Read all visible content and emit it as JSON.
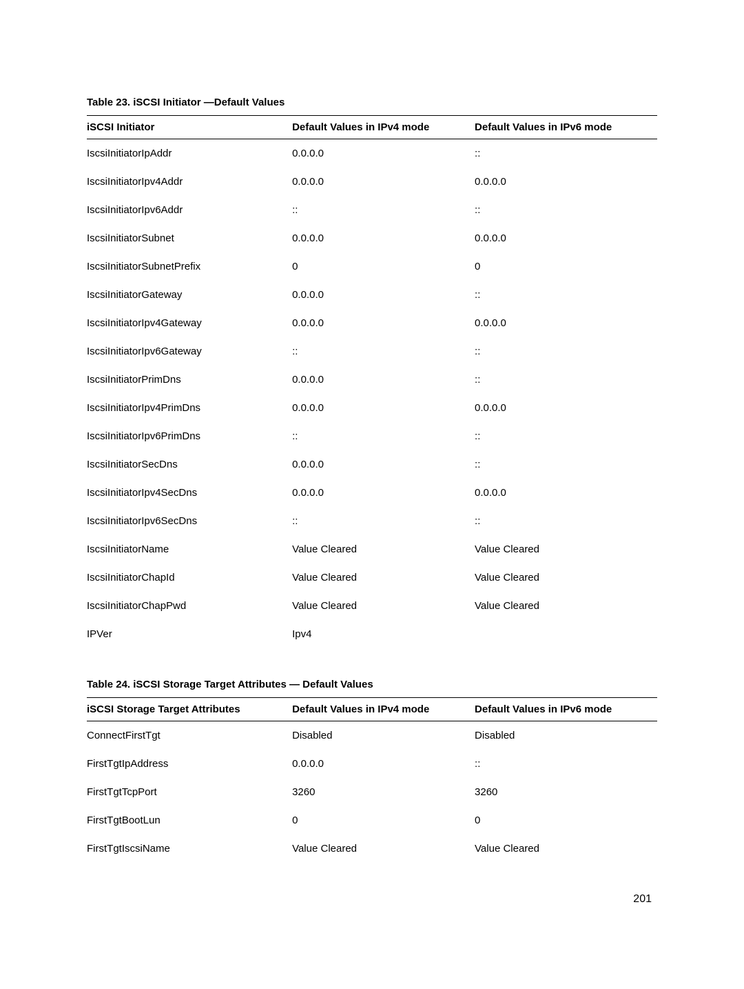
{
  "table23": {
    "title": "Table 23. iSCSI Initiator —Default Values",
    "headers": [
      "iSCSI Initiator",
      "Default Values in IPv4 mode",
      "Default Values in IPv6 mode"
    ],
    "rows": [
      [
        "IscsiInitiatorIpAddr",
        "0.0.0.0",
        "::"
      ],
      [
        "IscsiInitiatorIpv4Addr",
        "0.0.0.0",
        "0.0.0.0"
      ],
      [
        "IscsiInitiatorIpv6Addr",
        "::",
        "::"
      ],
      [
        "IscsiInitiatorSubnet",
        "0.0.0.0",
        "0.0.0.0"
      ],
      [
        "IscsiInitiatorSubnetPrefix",
        "0",
        "0"
      ],
      [
        "IscsiInitiatorGateway",
        "0.0.0.0",
        "::"
      ],
      [
        "IscsiInitiatorIpv4Gateway",
        "0.0.0.0",
        "0.0.0.0"
      ],
      [
        "IscsiInitiatorIpv6Gateway",
        "::",
        "::"
      ],
      [
        "IscsiInitiatorPrimDns",
        "0.0.0.0",
        "::"
      ],
      [
        "IscsiInitiatorIpv4PrimDns",
        "0.0.0.0",
        "0.0.0.0"
      ],
      [
        "IscsiInitiatorIpv6PrimDns",
        "::",
        "::"
      ],
      [
        "IscsiInitiatorSecDns",
        "0.0.0.0",
        "::"
      ],
      [
        "IscsiInitiatorIpv4SecDns",
        "0.0.0.0",
        "0.0.0.0"
      ],
      [
        "IscsiInitiatorIpv6SecDns",
        "::",
        "::"
      ],
      [
        "IscsiInitiatorName",
        "Value Cleared",
        "Value Cleared"
      ],
      [
        "IscsiInitiatorChapId",
        "Value Cleared",
        "Value Cleared"
      ],
      [
        "IscsiInitiatorChapPwd",
        "Value Cleared",
        "Value Cleared"
      ],
      [
        "IPVer",
        "Ipv4",
        ""
      ]
    ]
  },
  "table24": {
    "title": "Table 24. iSCSI Storage Target Attributes — Default Values",
    "headers": [
      "iSCSI Storage Target Attributes",
      "Default Values in IPv4 mode",
      "Default Values in IPv6 mode"
    ],
    "rows": [
      [
        "ConnectFirstTgt",
        "Disabled",
        "Disabled"
      ],
      [
        "FirstTgtIpAddress",
        "0.0.0.0",
        "::"
      ],
      [
        "FirstTgtTcpPort",
        "3260",
        "3260"
      ],
      [
        "FirstTgtBootLun",
        "0",
        "0"
      ],
      [
        "FirstTgtIscsiName",
        "Value Cleared",
        "Value Cleared"
      ]
    ]
  },
  "pageNumber": "201"
}
